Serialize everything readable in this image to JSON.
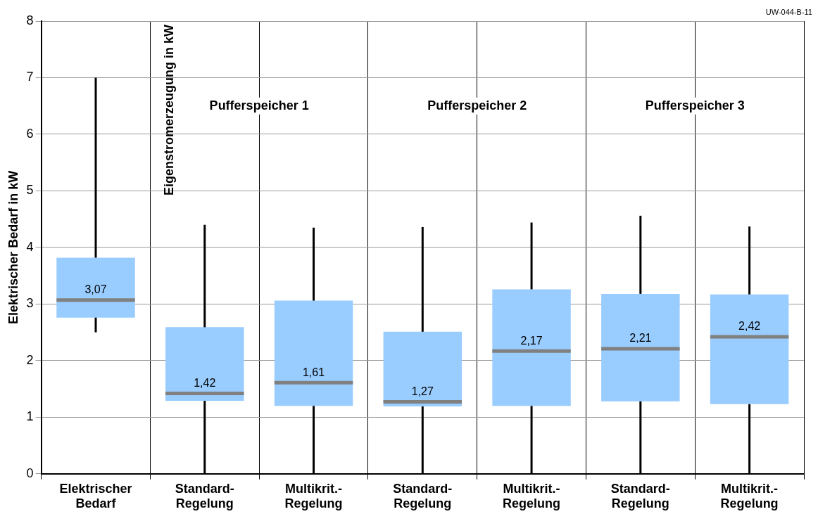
{
  "chart_data": {
    "type": "box",
    "ylabel": "Elektrischer Bedarf in kW",
    "y2label": "Eigenstromerzeugung in kW",
    "categories": [
      "Elektrischer Bedarf",
      "Standard-Regelung",
      "Multikrit.-Regelung",
      "Standard-Regelung",
      "Multikrit.-Regelung",
      "Standard-Regelung",
      "Multikrit.-Regelung"
    ],
    "series": [
      {
        "color": "#99ccff",
        "boxes": [
          {
            "low": 2.5,
            "q1": 2.76,
            "median": 3.07,
            "q3": 3.82,
            "high": 7.0
          },
          {
            "low": 0,
            "q1": 1.29,
            "median": 1.42,
            "q3": 2.59,
            "high": 4.4
          },
          {
            "low": 0,
            "q1": 1.2,
            "median": 1.61,
            "q3": 3.06,
            "high": 4.35
          },
          {
            "low": 0,
            "q1": 1.19,
            "median": 1.27,
            "q3": 2.51,
            "high": 4.36
          },
          {
            "low": 0,
            "q1": 1.2,
            "median": 2.17,
            "q3": 3.26,
            "high": 4.44
          },
          {
            "low": 0,
            "q1": 1.28,
            "median": 2.21,
            "q3": 3.18,
            "high": 4.56
          },
          {
            "low": 0,
            "q1": 1.23,
            "median": 2.42,
            "q3": 3.17,
            "high": 4.37
          }
        ]
      }
    ],
    "value_labels": [
      "3,07",
      "1,42",
      "1,61",
      "1,27",
      "2,17",
      "2,21",
      "2,42"
    ],
    "ylim": [
      0,
      8
    ],
    "yticks": [
      0,
      1,
      2,
      3,
      4,
      5,
      6,
      7,
      8
    ],
    "grid": true,
    "annotations": [
      "UW-044-B-11",
      "Pufferspeicher 1",
      "Pufferspeicher 2",
      "Pufferspeicher 3"
    ]
  }
}
